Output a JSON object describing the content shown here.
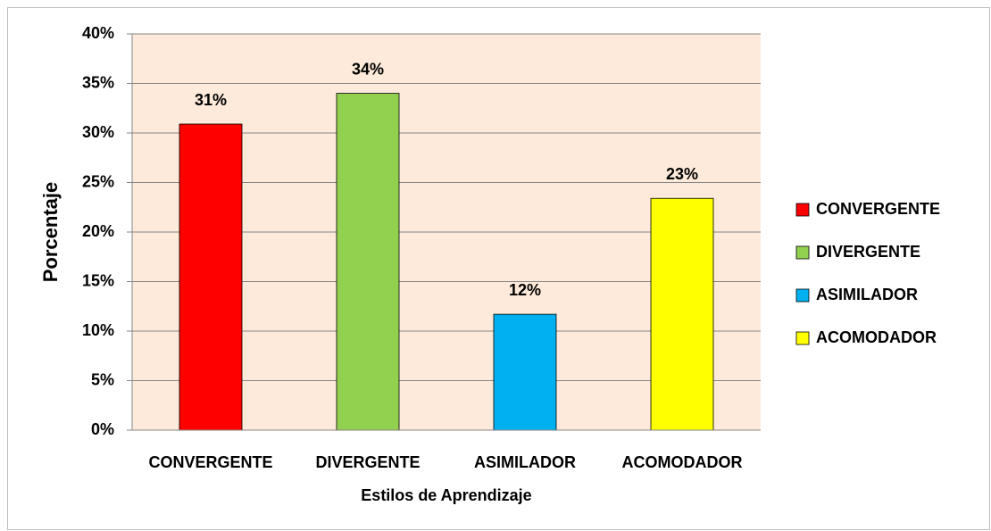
{
  "chart_data": {
    "type": "bar",
    "categories": [
      "CONVERGENTE",
      "DIVERGENTE",
      "ASIMILADOR",
      "ACOMODADOR"
    ],
    "values": [
      30.9,
      34.0,
      11.7,
      23.4
    ],
    "value_labels": [
      "31%",
      "34%",
      "12%",
      "23%"
    ],
    "colors": [
      "#ff0000",
      "#92d050",
      "#00b0f0",
      "#ffff00"
    ],
    "x_label": "Estilos de Aprendizaje",
    "y_label": "Porcentaje",
    "ylim": [
      0,
      40
    ],
    "yticks": [
      {
        "value": 0,
        "label": "0%"
      },
      {
        "value": 5,
        "label": "5%"
      },
      {
        "value": 10,
        "label": "10%"
      },
      {
        "value": 15,
        "label": "15%"
      },
      {
        "value": 20,
        "label": "20%"
      },
      {
        "value": 25,
        "label": "25%"
      },
      {
        "value": 30,
        "label": "30%"
      },
      {
        "value": 35,
        "label": "35%"
      },
      {
        "value": 40,
        "label": "40%"
      }
    ],
    "grid": true,
    "legend": "right"
  }
}
